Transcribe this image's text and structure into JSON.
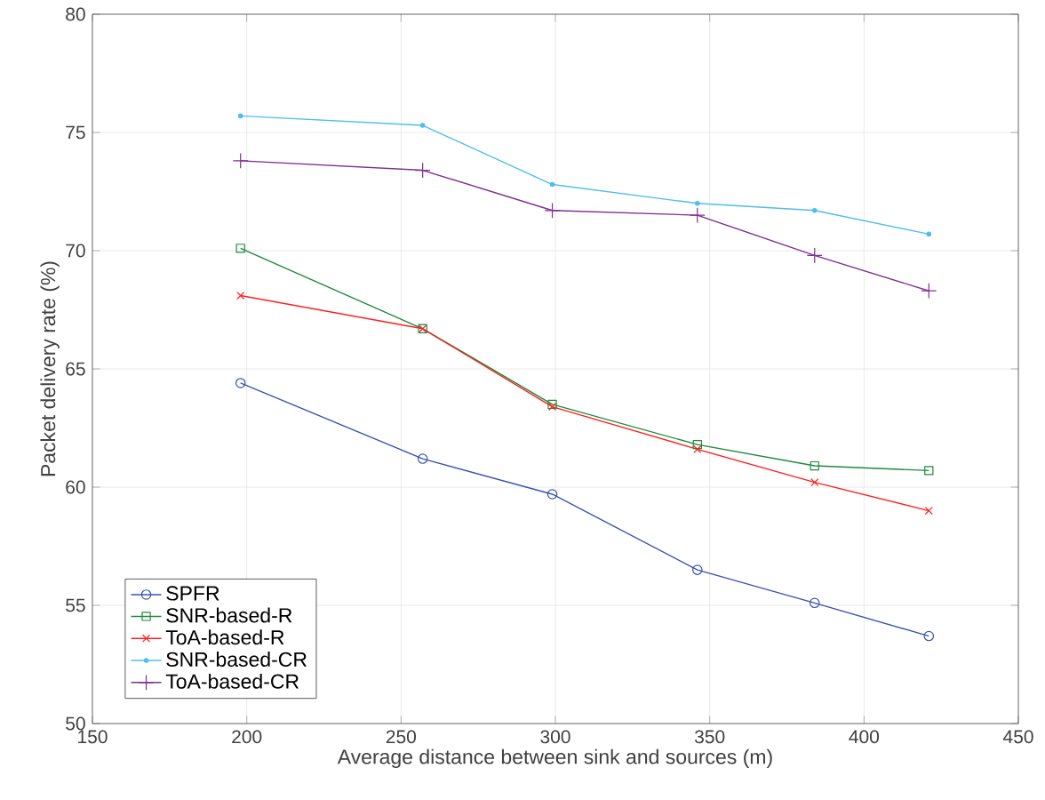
{
  "chart_data": {
    "type": "line",
    "xlabel": "Average distance between sink and sources (m)",
    "ylabel": "Packet delivery rate (%)",
    "x": [
      198,
      257,
      299,
      346,
      384,
      421
    ],
    "xlim": [
      150,
      450
    ],
    "xticks": [
      150,
      200,
      250,
      300,
      350,
      400,
      450
    ],
    "ylim": [
      50,
      80
    ],
    "yticks": [
      50,
      55,
      60,
      65,
      70,
      75,
      80
    ],
    "grid": true,
    "legend": "bottom left",
    "line_style": "solid",
    "series": [
      {
        "name": "SPFR",
        "color": "#3a52b0",
        "marker": "circle",
        "values": [
          64.4,
          61.2,
          59.7,
          56.5,
          55.1,
          53.7
        ]
      },
      {
        "name": "SNR-based-R",
        "color": "#1e8a3e",
        "marker": "square",
        "values": [
          70.1,
          66.7,
          63.5,
          61.8,
          60.9,
          60.7
        ]
      },
      {
        "name": "ToA-based-R",
        "color": "#ff2020",
        "marker": "cross",
        "values": [
          68.1,
          66.7,
          63.4,
          61.6,
          60.2,
          59.0
        ]
      },
      {
        "name": "SNR-based-CR",
        "color": "#4dbeee",
        "marker": "dot",
        "values": [
          75.7,
          75.3,
          72.8,
          72.0,
          71.7,
          70.7
        ]
      },
      {
        "name": "ToA-based-CR",
        "color": "#7e2f8e",
        "marker": "plus",
        "values": [
          73.8,
          73.4,
          71.7,
          71.5,
          69.8,
          68.3
        ]
      }
    ]
  }
}
